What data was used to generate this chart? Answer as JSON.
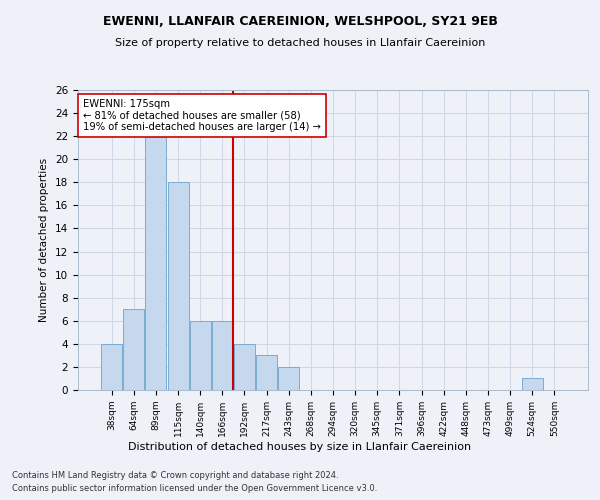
{
  "title": "EWENNI, LLANFAIR CAEREINION, WELSHPOOL, SY21 9EB",
  "subtitle": "Size of property relative to detached houses in Llanfair Caereinion",
  "xlabel": "Distribution of detached houses by size in Llanfair Caereinion",
  "ylabel": "Number of detached properties",
  "categories": [
    "38sqm",
    "64sqm",
    "89sqm",
    "115sqm",
    "140sqm",
    "166sqm",
    "192sqm",
    "217sqm",
    "243sqm",
    "268sqm",
    "294sqm",
    "320sqm",
    "345sqm",
    "371sqm",
    "396sqm",
    "422sqm",
    "448sqm",
    "473sqm",
    "499sqm",
    "524sqm",
    "550sqm"
  ],
  "values": [
    4,
    7,
    22,
    18,
    6,
    6,
    4,
    3,
    2,
    0,
    0,
    0,
    0,
    0,
    0,
    0,
    0,
    0,
    0,
    1,
    0
  ],
  "bar_color": "#c5d8ed",
  "bar_edge_color": "#7aadd4",
  "grid_color": "#d0d8e8",
  "bg_color": "#eef2f8",
  "vline_x": 5.5,
  "vline_color": "#cc0000",
  "annotation_text": "EWENNI: 175sqm\n← 81% of detached houses are smaller (58)\n19% of semi-detached houses are larger (14) →",
  "annotation_box_color": "#ffffff",
  "annotation_box_edge": "#cc0000",
  "ylim": [
    0,
    26
  ],
  "yticks": [
    0,
    2,
    4,
    6,
    8,
    10,
    12,
    14,
    16,
    18,
    20,
    22,
    24,
    26
  ],
  "footnote1": "Contains HM Land Registry data © Crown copyright and database right 2024.",
  "footnote2": "Contains public sector information licensed under the Open Government Licence v3.0."
}
